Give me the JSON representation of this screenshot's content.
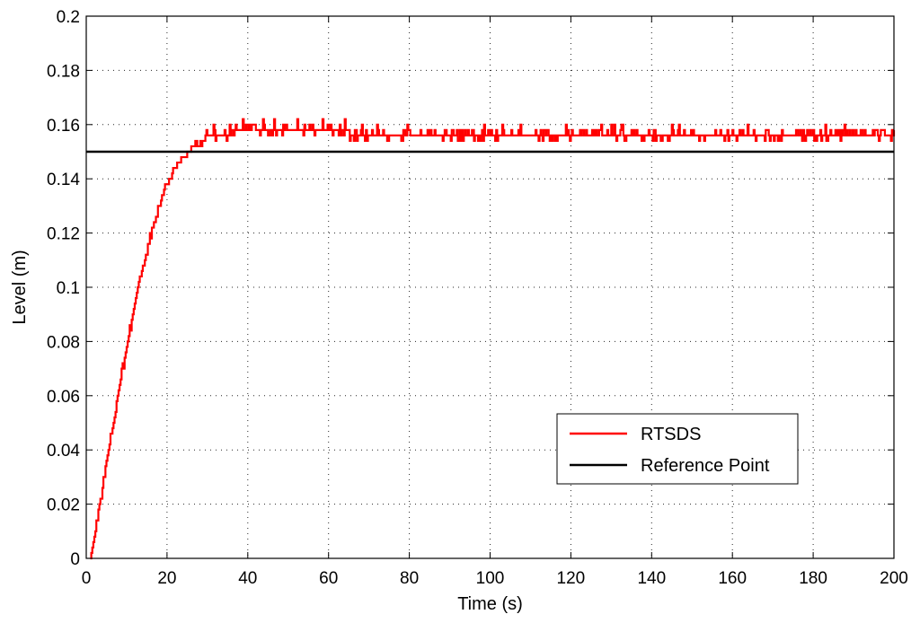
{
  "chart_data": {
    "type": "line",
    "title": "",
    "xlabel": "Time (s)",
    "ylabel": "Level (m)",
    "xlim": [
      0,
      200
    ],
    "ylim": [
      0,
      0.2
    ],
    "xticks": [
      0,
      20,
      40,
      60,
      80,
      100,
      120,
      140,
      160,
      180,
      200
    ],
    "xtick_labels": [
      "0",
      "20",
      "40",
      "60",
      "80",
      "100",
      "120",
      "140",
      "160",
      "180",
      "200"
    ],
    "yticks": [
      0,
      0.02,
      0.04,
      0.06,
      0.08,
      0.1,
      0.12,
      0.14,
      0.16,
      0.18,
      0.2
    ],
    "ytick_labels": [
      "0",
      "0.02",
      "0.04",
      "0.06",
      "0.08",
      "0.1",
      "0.12",
      "0.14",
      "0.16",
      "0.18",
      "0.2"
    ],
    "grid": true,
    "legend_position": "bottom-right",
    "series": [
      {
        "name": "RTSDS",
        "color": "#ff0000",
        "x": [
          1,
          2,
          4,
          6,
          8,
          10,
          12,
          14,
          16,
          18,
          20,
          22,
          24,
          26,
          28,
          30,
          33,
          36,
          40,
          45,
          50,
          55,
          60,
          65,
          70,
          75,
          80,
          85,
          90,
          95,
          100,
          110,
          120,
          130,
          140,
          150,
          160,
          170,
          180,
          190,
          200
        ],
        "y": [
          0.0,
          0.008,
          0.026,
          0.044,
          0.062,
          0.078,
          0.094,
          0.108,
          0.12,
          0.13,
          0.138,
          0.144,
          0.148,
          0.151,
          0.153,
          0.155,
          0.156,
          0.157,
          0.157,
          0.157,
          0.157,
          0.157,
          0.157,
          0.157,
          0.156,
          0.156,
          0.155,
          0.155,
          0.155,
          0.155,
          0.155,
          0.155,
          0.155,
          0.156,
          0.156,
          0.155,
          0.155,
          0.155,
          0.155,
          0.155,
          0.155
        ],
        "noise_amplitude": 0.002
      },
      {
        "name": "Reference Point",
        "color": "#000000",
        "x": [
          0,
          200
        ],
        "y": [
          0.15,
          0.15
        ]
      }
    ]
  }
}
